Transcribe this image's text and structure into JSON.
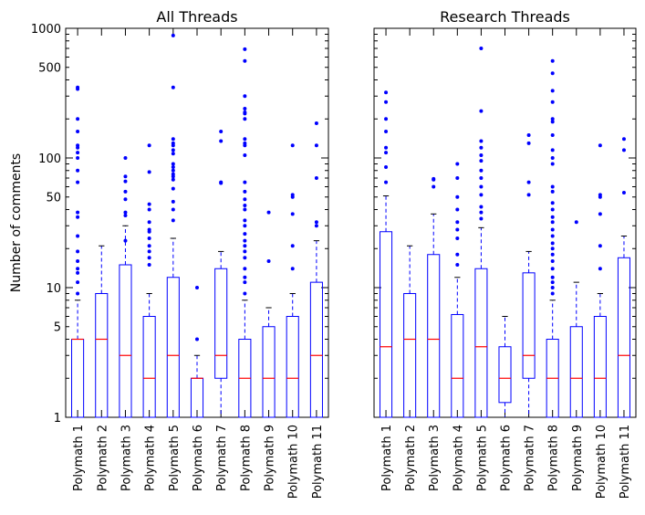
{
  "chart_data": [
    {
      "type": "box",
      "title": "All Threads",
      "ylabel": "Number of comments",
      "yscale": "log",
      "ylim": [
        1,
        1000
      ],
      "yticks": [
        1,
        5,
        10,
        50,
        100,
        500,
        1000
      ],
      "categories": [
        "Polymath 1",
        "Polymath 2",
        "Polymath 3",
        "Polymath 4",
        "Polymath 5",
        "Polymath 6",
        "Polymath 7",
        "Polymath 8",
        "Polymath 9",
        "Polymath 10",
        "Polymath 11"
      ],
      "boxes": [
        {
          "q1": 1,
          "median": 4,
          "q3": 4,
          "whislo": 1,
          "whishi": 8,
          "fliers": [
            350,
            340,
            200,
            160,
            125,
            120,
            110,
            100,
            80,
            65,
            38,
            35,
            25,
            19,
            16,
            14,
            13,
            11,
            9
          ]
        },
        {
          "q1": 1,
          "median": 4,
          "q3": 9,
          "whislo": 1,
          "whishi": 21,
          "fliers": []
        },
        {
          "q1": 1,
          "median": 3,
          "q3": 15,
          "whislo": 1,
          "whishi": 30,
          "fliers": [
            100,
            72,
            66,
            55,
            48,
            38,
            36,
            23
          ]
        },
        {
          "q1": 1,
          "median": 2,
          "q3": 6,
          "whislo": 1,
          "whishi": 9,
          "fliers": [
            125,
            78,
            44,
            40,
            32,
            28,
            27,
            24,
            21,
            19,
            17,
            15
          ]
        },
        {
          "q1": 1,
          "median": 3,
          "q3": 12,
          "whislo": 1,
          "whishi": 24,
          "fliers": [
            880,
            350,
            140,
            130,
            125,
            115,
            108,
            90,
            85,
            80,
            75,
            72,
            68,
            58,
            46,
            40,
            33
          ]
        },
        {
          "q1": 1,
          "median": 2,
          "q3": 2,
          "whislo": 1,
          "whishi": 3,
          "fliers": [
            10,
            4
          ]
        },
        {
          "q1": 2,
          "median": 3,
          "q3": 14,
          "whislo": 1,
          "whishi": 19,
          "fliers": [
            160,
            135,
            65,
            64
          ]
        },
        {
          "q1": 1,
          "median": 2,
          "q3": 4,
          "whislo": 1,
          "whishi": 8,
          "fliers": [
            690,
            560,
            300,
            240,
            225,
            220,
            200,
            140,
            130,
            125,
            105,
            65,
            55,
            48,
            43,
            40,
            33,
            30,
            26,
            23,
            21,
            19,
            17,
            14,
            12,
            11,
            9
          ]
        },
        {
          "q1": 1,
          "median": 2,
          "q3": 5,
          "whislo": 1,
          "whishi": 7,
          "fliers": [
            38,
            16
          ]
        },
        {
          "q1": 1,
          "median": 2,
          "q3": 6,
          "whislo": 1,
          "whishi": 9,
          "fliers": [
            125,
            52,
            50,
            37,
            21,
            14
          ]
        },
        {
          "q1": 1,
          "median": 3,
          "q3": 11,
          "whislo": 1,
          "whishi": 23,
          "fliers": [
            185,
            125,
            70,
            32,
            30
          ]
        }
      ]
    },
    {
      "type": "box",
      "title": "Research Threads",
      "yscale": "log",
      "ylim": [
        1,
        1000
      ],
      "yticks": [
        1,
        5,
        10,
        50,
        100,
        500,
        1000
      ],
      "categories": [
        "Polymath 1",
        "Polymath 2",
        "Polymath 3",
        "Polymath 4",
        "Polymath 5",
        "Polymath 6",
        "Polymath 7",
        "Polymath 8",
        "Polymath 9",
        "Polymath 10",
        "Polymath 11"
      ],
      "boxes": [
        {
          "q1": 1,
          "median": 3.5,
          "q3": 27,
          "whislo": 1,
          "whishi": 51,
          "fliers": [
            320,
            270,
            200,
            160,
            120,
            110,
            85,
            65
          ]
        },
        {
          "q1": 1,
          "median": 4,
          "q3": 9,
          "whislo": 1,
          "whishi": 21,
          "fliers": []
        },
        {
          "q1": 1,
          "median": 4,
          "q3": 18,
          "whislo": 1,
          "whishi": 37,
          "fliers": [
            69,
            68,
            60
          ]
        },
        {
          "q1": 1,
          "median": 2,
          "q3": 6.2,
          "whislo": 1,
          "whishi": 12,
          "fliers": [
            90,
            70,
            50,
            40,
            32,
            28,
            24,
            18,
            15
          ]
        },
        {
          "q1": 1,
          "median": 3.5,
          "q3": 14,
          "whislo": 1,
          "whishi": 29,
          "fliers": [
            700,
            230,
            135,
            120,
            105,
            95,
            80,
            70,
            60,
            52,
            42,
            38,
            34
          ]
        },
        {
          "q1": 1.3,
          "median": 2,
          "q3": 3.5,
          "whislo": 1,
          "whishi": 6,
          "fliers": []
        },
        {
          "q1": 2,
          "median": 3,
          "q3": 13,
          "whislo": 1,
          "whishi": 19,
          "fliers": [
            150,
            130,
            65,
            52
          ]
        },
        {
          "q1": 1,
          "median": 2,
          "q3": 4,
          "whislo": 1,
          "whishi": 8,
          "fliers": [
            560,
            450,
            330,
            270,
            200,
            190,
            150,
            115,
            100,
            90,
            60,
            55,
            45,
            40,
            35,
            32,
            28,
            25,
            22,
            20,
            18,
            16,
            14,
            12,
            11,
            10,
            9
          ]
        },
        {
          "q1": 1,
          "median": 2,
          "q3": 5,
          "whislo": 1,
          "whishi": 11,
          "fliers": [
            32
          ]
        },
        {
          "q1": 1,
          "median": 2,
          "q3": 6,
          "whislo": 1,
          "whishi": 9,
          "fliers": [
            125,
            52,
            50,
            37,
            21,
            14
          ]
        },
        {
          "q1": 1,
          "median": 3,
          "q3": 17,
          "whislo": 1,
          "whishi": 25,
          "fliers": [
            140,
            115,
            54
          ]
        }
      ]
    }
  ]
}
